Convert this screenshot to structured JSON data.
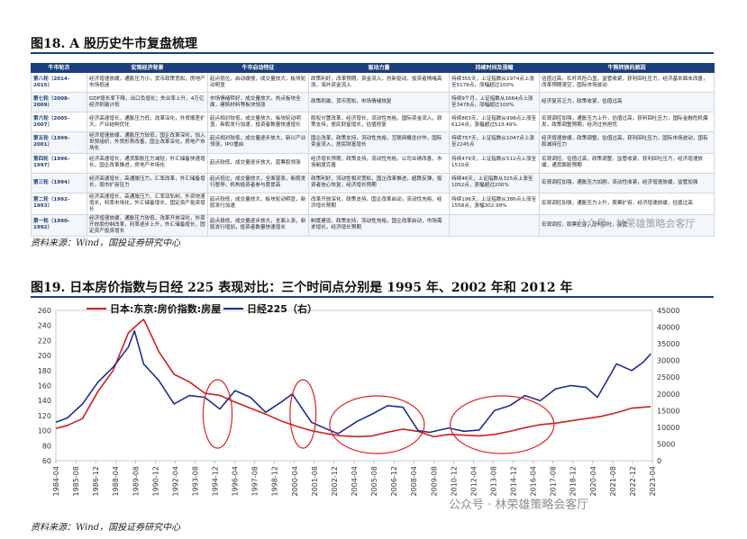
{
  "fig18": {
    "title": "图18. A 股历史牛市复盘梳理",
    "headers": [
      "牛市轮次",
      "宏观经济背景",
      "牛市启动特征",
      "驱动力量",
      "持续时间及涨幅",
      "牛熊转换的原因"
    ],
    "rows": [
      {
        "round": "第八轮（2014-2015）",
        "macro": "经济增速放缓，通胀压力小，货币政策宽松，房地产市场低迷",
        "start": "起点低位，启动缓慢，成交量放大，板块轮动明显",
        "drive": "政策利好，改革预期，资金流入，创新驱动，投资者情绪高涨，海外资金流入",
        "duration": "持续355天，上证指数从1974点上涨至5178点，涨幅超过100%",
        "reason": "估值过高，杠杆风险凸显，监管收紧，获利回吐压力，经济基本面未改善，改革预期落空，国际市场波动"
      },
      {
        "round": "第七轮（2008-2009）",
        "macro": "GDP增长率下降，出口负增长；失业率上升，4万亿经济刺激计划",
        "start": "市场情绪转好，成交量放大，热点板块全面，建筑材料等板块领涨",
        "drive": "政策刺激，货币宽松，市场情绪恢复",
        "duration": "持续9个月，上证指数从1664点上涨至3478点，涨幅超过100%",
        "reason": "经济复苏乏力，政策收紧，估值过高"
      },
      {
        "round": "第六轮（2005-2007）",
        "macro": "经济高速增长，通胀压力低，改革深化，外贸顺差扩大，产业结构优化",
        "start": "起点相对较低，成交量放大，板块轮动明显，新股发行加速，投资者数量快速增长",
        "drive": "股权分置改革，经济增长，流动性充裕，国际资金流入，政策支持，居民财富增长，估值修复",
        "duration": "持续863天，上证指数从998点上涨至6124点，涨幅超过513.49%",
        "reason": "宏观调控加强，通胀压力上升，估值过高，获利回吐压力，国际金融危机爆发，政策调整预期，经济过热担忧"
      },
      {
        "round": "第五轮（1999-2001）",
        "macro": "经济增速放缓，通胀压力较低，国企改革深化，加入世贸组织，外贸形势改善，国企改革深化，房地产市场化",
        "start": "起点相对较低，成交量逐步放大，新兴产业领涨，IPO重启",
        "drive": "国企改革，政策支持，流动性充裕，互联网概念炒作，国际资金流入，居民财富增长",
        "duration": "持续757天，上证指数从1047点上涨至2245点",
        "reason": "经济增速放缓，政策调整，估值过高，获利回吐压力，国际市场波动，国有股减持压力"
      },
      {
        "round": "第四轮（1996-1997）",
        "macro": "经济高速增长，通货膨胀压力减轻，外汇储备快速增长，国企改革推进，房地产市场化",
        "start": "起点较低，成交量逐步放大，蓝筹股领涨",
        "drive": "经济增长预期，政策支持，流动性充裕，公司业绩改善，市场制度完善",
        "duration": "持续479天，上证指数从512点上涨至1510点",
        "reason": "宏观调控，估值过高，政策调整，监管收紧，获利回吐压力，经济增速放缓，通货膨胀预期"
      },
      {
        "round": "第三轮（1994）",
        "macro": "经济高速增长，高通胀压力，汇率改革，外汇储备增长，股市扩容压力",
        "start": "起点低位，成交量放大，全面普涨，新股发行暂停，机构投资者参与度提高",
        "drive": "政策利好，流动性相对宽松，国企改革推进，超跌反弹，投资者信心恢复，经济增长预期",
        "duration": "持续46天，上证指数从325点上涨至1052点，涨幅超过200%",
        "reason": "宏观调控加强，通胀压力加剧，流动性收紧，经济增速放缓，监管加强"
      },
      {
        "round": "第二轮（1992-1993）",
        "macro": "经济高速增长，高通胀压力，汇率双轨制，外资快速增长，利率市场化，外汇储备增长，固定资产投资增长",
        "start": "起点较低，成交量放大，板块轮动明显，新股发行加速",
        "drive": "改革开放深化，政策支持，国企改革启动，流动性充裕，经济增长预期",
        "duration": "持续196天，上证指数从386点上涨至1558点，涨幅302.99%",
        "reason": "宏观调控加强，通胀压力上升，股票扩容，经济增速放缓，估值过高"
      },
      {
        "round": "第一轮（1990-1992）",
        "macro": "经济增速放缓，通胀压力较低，改革开放深化，外资开放股份制改革，利率逐步上升，外汇储备增长，固定资产投资增长",
        "start": "起点极低，成交量逐步放大，全面上涨，新股发行增加，投资者数量快速增长",
        "drive": "制度建设，政策支持，流动性充裕，国企改革启动，市场需求增长，经济增长预期",
        "duration": "",
        "reason": "宏观调控，股票扩容，获利回吐，监管"
      }
    ],
    "source": "资料来源：Wind，国投证券研究中心"
  },
  "fig19": {
    "title": "图19. 日本房价指数与日经 225 表现对比：三个时间点分别是 1995 年、2002 年和 2012 年",
    "source": "资料来源：Wind，国投证券研究中心"
  },
  "watermarks": {
    "top": "公众号 · 林荣雄策略会客厅",
    "bottom": "公众号 · 林荣雄策略会客厅"
  },
  "chart_data": {
    "type": "line",
    "series": [
      {
        "name": "日本:东京:房价指数:房屋",
        "axis": "left",
        "color": "#d0201c",
        "x": [
          1984.75,
          1985.5,
          1986.5,
          1987.5,
          1988.5,
          1989.5,
          1990.25,
          1990.5,
          1990.75,
          1991.5,
          1992.5,
          1993.5,
          1994.5,
          1995.5,
          1996.5,
          1997.5,
          1998.5,
          1999.5,
          2000.5,
          2001.5,
          2002.5,
          2003.5,
          2004.5,
          2005.5,
          2006.5,
          2007.5,
          2008.5,
          2009.5,
          2010.5,
          2011.5,
          2012.5,
          2013.5,
          2014.5,
          2015.5,
          2016.5,
          2017.5,
          2018.5,
          2019.5,
          2020.5,
          2021.5,
          2022.5,
          2023.75
        ],
        "values": [
          103,
          107,
          116,
          152,
          180,
          230,
          244,
          248,
          238,
          205,
          175,
          165,
          150,
          147,
          138,
          130,
          122,
          113,
          106,
          100,
          96,
          93,
          92,
          93,
          98,
          102,
          99,
          92,
          95,
          94,
          93,
          95,
          99,
          104,
          108,
          110,
          113,
          116,
          119,
          124,
          130,
          132
        ]
      },
      {
        "name": "日经225（右）",
        "axis": "right",
        "color": "#1f2e8f",
        "x": [
          1984.75,
          1985.5,
          1986.5,
          1987.5,
          1988.5,
          1989.5,
          1989.9,
          1990.5,
          1991.5,
          1992.5,
          1993.5,
          1994.5,
          1995.5,
          1996.5,
          1997.5,
          1998.5,
          1999.5,
          2000.25,
          2001.5,
          2002.5,
          2003.25,
          2004.5,
          2005.5,
          2006.5,
          2007.5,
          2008.5,
          2009.25,
          2010.5,
          2011.5,
          2012.5,
          2013.5,
          2014.5,
          2015.5,
          2016.5,
          2017.5,
          2018.5,
          2019.5,
          2020.25,
          2020.75,
          2021.5,
          2022.5,
          2023.25,
          2023.75
        ],
        "values": [
          11500,
          12800,
          17000,
          23500,
          28000,
          34000,
          38900,
          29000,
          24000,
          17000,
          19500,
          19000,
          15500,
          21000,
          19000,
          14500,
          17500,
          20000,
          11500,
          9500,
          8100,
          11800,
          14000,
          16500,
          16000,
          9000,
          8500,
          9800,
          8800,
          9200,
          15000,
          16500,
          19500,
          18000,
          21500,
          22500,
          22000,
          19000,
          23000,
          29000,
          27000,
          29500,
          32000
        ]
      }
    ],
    "left_axis": {
      "min": 60,
      "max": 260,
      "ticks": [
        60,
        80,
        100,
        120,
        140,
        160,
        180,
        200,
        220,
        240,
        260
      ]
    },
    "right_axis": {
      "min": 0,
      "max": 45000,
      "ticks": [
        0,
        5000,
        10000,
        15000,
        20000,
        25000,
        30000,
        35000,
        40000,
        45000
      ]
    },
    "x_tick_labels": [
      "1984-04",
      "1985-08",
      "1986-12",
      "1988-04",
      "1989-08",
      "1990-12",
      "1992-04",
      "1993-08",
      "1994-12",
      "1996-04",
      "1997-08",
      "1998-12",
      "2000-04",
      "2001-08",
      "2002-12",
      "2004-04",
      "2005-08",
      "2006-12",
      "2008-04",
      "2009-08",
      "2010-12",
      "2012-04",
      "2013-08",
      "2014-12",
      "2016-04",
      "2017-08",
      "2018-12",
      "2020-04",
      "2021-08",
      "2022-12",
      "2023-04"
    ],
    "legend": {
      "placement": "top-left"
    },
    "highlight_periods": [
      {
        "from": 1994.4,
        "to": 1996.3
      },
      {
        "from": 2000.1,
        "to": 2001.8
      },
      {
        "from": 2002.7,
        "to": 2008.9
      },
      {
        "from": 2010.6,
        "to": 2017.4
      }
    ]
  }
}
